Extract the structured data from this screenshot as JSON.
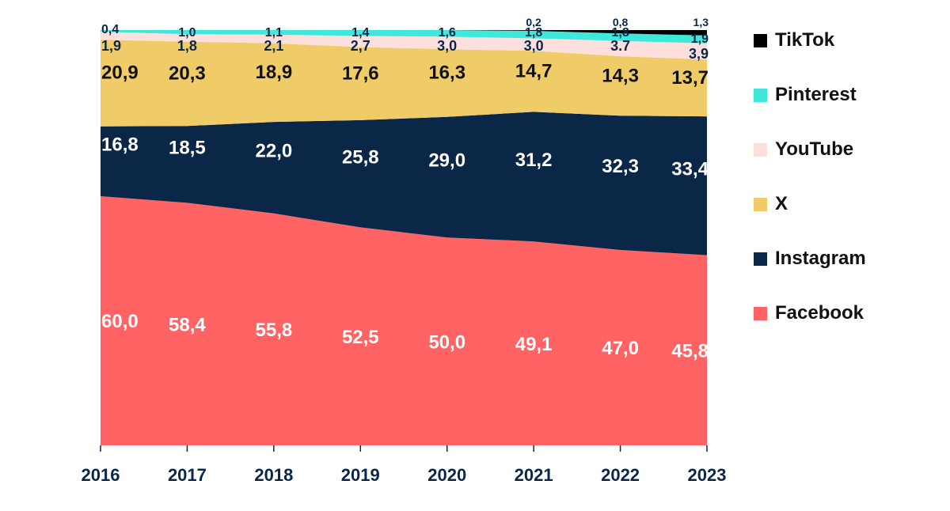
{
  "chart_data": {
    "type": "area",
    "stacked": true,
    "normalized": true,
    "categories": [
      "2016",
      "2017",
      "2018",
      "2019",
      "2020",
      "2021",
      "2022",
      "2023"
    ],
    "series": [
      {
        "name": "Facebook",
        "color": "#FF6363",
        "values": [
          60.0,
          58.4,
          55.8,
          52.5,
          50.0,
          49.1,
          47.0,
          45.8
        ],
        "labels": [
          "60,0",
          "58,4",
          "55,8",
          "52,5",
          "50,0",
          "49,1",
          "47,0",
          "45,8"
        ]
      },
      {
        "name": "Instagram",
        "color": "#0B2747",
        "values": [
          16.8,
          18.5,
          22.0,
          25.8,
          29.0,
          31.2,
          32.3,
          33.4
        ],
        "labels": [
          "16,8",
          "18,5",
          "22,0",
          "25,8",
          "29,0",
          "31,2",
          "32,3",
          "33,4"
        ]
      },
      {
        "name": "X",
        "color": "#F0CC68",
        "values": [
          20.9,
          20.3,
          18.9,
          17.6,
          16.3,
          14.7,
          14.3,
          13.7
        ],
        "labels": [
          "20,9",
          "20,3",
          "18,9",
          "17,6",
          "16,3",
          "14,7",
          "14,3",
          "13,7"
        ]
      },
      {
        "name": "YouTube",
        "color": "#FDE0DE",
        "values": [
          1.9,
          1.8,
          2.1,
          2.7,
          3.0,
          3.0,
          3.7,
          3.9
        ],
        "labels": [
          "1,9",
          "1,8",
          "2,1",
          "2,7",
          "3,0",
          "3,0",
          "3.7",
          "3,9"
        ]
      },
      {
        "name": "Pinterest",
        "color": "#40E8DC",
        "values": [
          0.4,
          1.0,
          1.1,
          1.4,
          1.6,
          1.8,
          1.8,
          1.9
        ],
        "labels": [
          "0,4",
          "1,0",
          "1,1",
          "1,4",
          "1,6",
          "1,8",
          "1,8",
          "1,9"
        ]
      },
      {
        "name": "TikTok",
        "color": "#000000",
        "values": [
          0,
          0,
          0,
          0,
          0,
          0.2,
          0.8,
          1.3
        ],
        "labels": [
          "",
          "",
          "",
          "",
          "",
          "0,2",
          "0,8",
          "1,3"
        ]
      }
    ],
    "ylim": [
      0,
      100
    ],
    "grid": false,
    "legend_position": "right",
    "legend_order": [
      "TikTok",
      "Pinterest",
      "YouTube",
      "X",
      "Instagram",
      "Facebook"
    ]
  }
}
